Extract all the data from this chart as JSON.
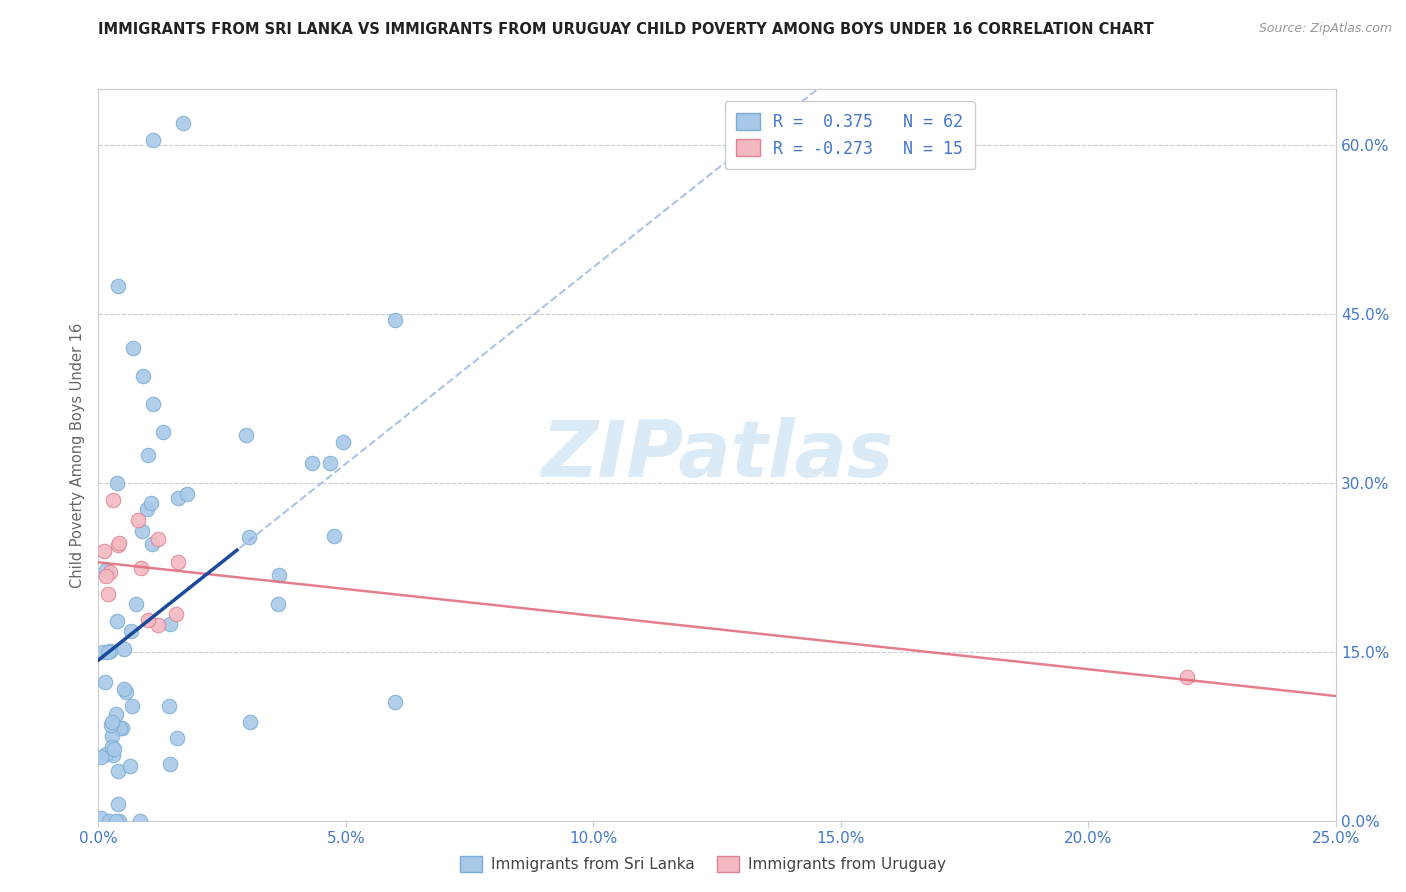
{
  "title": "IMMIGRANTS FROM SRI LANKA VS IMMIGRANTS FROM URUGUAY CHILD POVERTY AMONG BOYS UNDER 16 CORRELATION CHART",
  "source": "Source: ZipAtlas.com",
  "xlabel_ticks": [
    "0.0%",
    "5.0%",
    "10.0%",
    "15.0%",
    "20.0%",
    "25.0%"
  ],
  "xlabel_vals": [
    0.0,
    0.05,
    0.1,
    0.15,
    0.2,
    0.25
  ],
  "ylabel_ticks": [
    "0.0%",
    "15.0%",
    "30.0%",
    "45.0%",
    "60.0%"
  ],
  "ylabel_vals": [
    0.0,
    0.15,
    0.3,
    0.45,
    0.6
  ],
  "xmax": 0.25,
  "ymax": 0.65,
  "ylabel": "Child Poverty Among Boys Under 16",
  "sri_lanka_color": "#a8c8e8",
  "sri_lanka_edge": "#7aadd4",
  "uruguay_color": "#f4b8c1",
  "uruguay_edge": "#e08090",
  "trendline_sri_lanka_color": "#1a4a9c",
  "trendline_sri_lanka_dash_color": "#88aadd",
  "trendline_uruguay_color": "#e06878",
  "legend_sri_lanka_label": "Immigrants from Sri Lanka",
  "legend_uruguay_label": "Immigrants from Uruguay",
  "watermark_color": "#daeaf7",
  "grid_color": "#cccccc",
  "tick_color": "#4477cc",
  "ylabel_color": "#666666",
  "title_color": "#222222",
  "source_color": "#999999"
}
